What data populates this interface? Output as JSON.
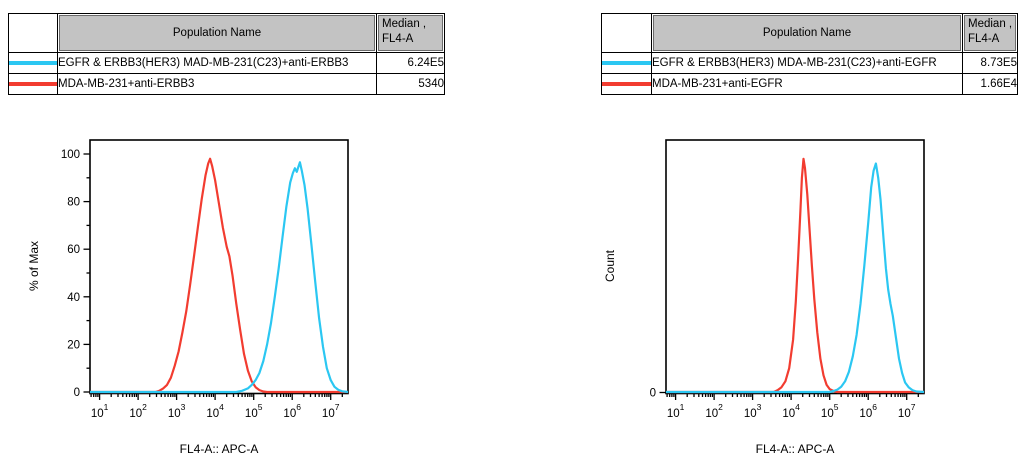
{
  "colors": {
    "series_cyan": "#2BC7F2",
    "series_red": "#F23C30",
    "header_bg": "#C3C3C3",
    "table_border": "#000000",
    "text": "#000000",
    "background": "#FFFFFF"
  },
  "tables": [
    {
      "population_header": "Population Name",
      "median_header_line1": "Median ,",
      "median_header_line2": "FL4-A",
      "rows": [
        {
          "swatch_color": "#2BC7F2",
          "population": "EGFR & ERBB3(HER3) MAD-MB-231(C23)+anti-ERBB3",
          "median": "6.24E5"
        },
        {
          "swatch_color": "#F23C30",
          "population": "MDA-MB-231+anti-ERBB3",
          "median": "5340"
        }
      ]
    },
    {
      "population_header": "Population Name",
      "median_header_line1": "Median ,",
      "median_header_line2": "FL4-A",
      "rows": [
        {
          "swatch_color": "#2BC7F2",
          "population": "EGFR & ERBB3(HER3) MDA-MB-231(C23)+anti-EGFR",
          "median": "8.73E5"
        },
        {
          "swatch_color": "#F23C30",
          "population": "MDA-MB-231+anti-EGFR",
          "median": "1.66E4"
        }
      ]
    }
  ],
  "chart_data": [
    {
      "type": "line",
      "subtype": "flow-cytometry-histogram-overlay",
      "xlabel": "FL4-A:: APC-A",
      "ylabel": "% of Max",
      "x_scale": "log10",
      "x_range_log10": [
        0.75,
        7.45
      ],
      "x_tick_exponents": [
        1,
        2,
        3,
        4,
        5,
        6,
        7
      ],
      "y_axis": {
        "style": "percent",
        "ticks": [
          0,
          20,
          40,
          60,
          80,
          100
        ],
        "minor_step": 10,
        "range": [
          0,
          100
        ]
      },
      "grid": false,
      "legend": "none",
      "series": [
        {
          "name": "MDA-MB-231+anti-ERBB3",
          "color_key": "red",
          "median": "5340",
          "points": [
            [
              0.75,
              0
            ],
            [
              2.45,
              0
            ],
            [
              2.55,
              0.5
            ],
            [
              2.65,
              1.5
            ],
            [
              2.75,
              3
            ],
            [
              2.85,
              6
            ],
            [
              2.95,
              11
            ],
            [
              3.05,
              17
            ],
            [
              3.15,
              25
            ],
            [
              3.25,
              34
            ],
            [
              3.35,
              45
            ],
            [
              3.45,
              57
            ],
            [
              3.55,
              69
            ],
            [
              3.65,
              81
            ],
            [
              3.75,
              91
            ],
            [
              3.82,
              96
            ],
            [
              3.87,
              98
            ],
            [
              3.92,
              95
            ],
            [
              4.0,
              89
            ],
            [
              4.1,
              79
            ],
            [
              4.2,
              69
            ],
            [
              4.3,
              61
            ],
            [
              4.37,
              57
            ],
            [
              4.45,
              49
            ],
            [
              4.55,
              37
            ],
            [
              4.65,
              26
            ],
            [
              4.75,
              16
            ],
            [
              4.85,
              9
            ],
            [
              4.95,
              4.5
            ],
            [
              5.05,
              2
            ],
            [
              5.15,
              0.8
            ],
            [
              5.25,
              0.2
            ],
            [
              5.35,
              0
            ],
            [
              7.45,
              0
            ]
          ]
        },
        {
          "name": "EGFR & ERBB3(HER3) MAD-MB-231(C23)+anti-ERBB3",
          "color_key": "cyan",
          "median": "6.24E5",
          "points": [
            [
              0.75,
              0
            ],
            [
              4.55,
              0
            ],
            [
              4.7,
              0.5
            ],
            [
              4.85,
              1.5
            ],
            [
              4.95,
              3
            ],
            [
              5.05,
              5
            ],
            [
              5.15,
              8
            ],
            [
              5.25,
              13
            ],
            [
              5.35,
              20
            ],
            [
              5.45,
              29
            ],
            [
              5.55,
              40
            ],
            [
              5.65,
              52
            ],
            [
              5.75,
              65
            ],
            [
              5.85,
              78
            ],
            [
              5.95,
              88
            ],
            [
              6.02,
              92
            ],
            [
              6.07,
              94
            ],
            [
              6.12,
              92.5
            ],
            [
              6.16,
              94.5
            ],
            [
              6.2,
              96.5
            ],
            [
              6.25,
              93
            ],
            [
              6.32,
              87
            ],
            [
              6.4,
              77
            ],
            [
              6.5,
              62
            ],
            [
              6.6,
              46
            ],
            [
              6.7,
              31
            ],
            [
              6.8,
              19
            ],
            [
              6.9,
              10
            ],
            [
              7.0,
              5
            ],
            [
              7.1,
              2.2
            ],
            [
              7.2,
              0.9
            ],
            [
              7.3,
              0.3
            ],
            [
              7.45,
              0
            ]
          ]
        }
      ]
    },
    {
      "type": "line",
      "subtype": "flow-cytometry-histogram-overlay",
      "xlabel": "FL4-A:: APC-A",
      "ylabel": "Count",
      "x_scale": "log10",
      "x_range_log10": [
        0.75,
        7.45
      ],
      "x_tick_exponents": [
        1,
        2,
        3,
        4,
        5,
        6,
        7
      ],
      "y_axis": {
        "style": "zero-only",
        "ticks": [
          0
        ],
        "range": [
          0,
          100
        ]
      },
      "grid": false,
      "legend": "none",
      "series": [
        {
          "name": "MDA-MB-231+anti-EGFR",
          "color_key": "red",
          "median": "1.66E4",
          "points": [
            [
              0.75,
              0
            ],
            [
              3.55,
              0
            ],
            [
              3.65,
              0.8
            ],
            [
              3.75,
              2
            ],
            [
              3.85,
              4.5
            ],
            [
              3.95,
              10
            ],
            [
              4.05,
              22
            ],
            [
              4.12,
              38
            ],
            [
              4.18,
              56
            ],
            [
              4.24,
              76
            ],
            [
              4.28,
              90
            ],
            [
              4.32,
              98
            ],
            [
              4.36,
              94
            ],
            [
              4.42,
              83
            ],
            [
              4.48,
              68
            ],
            [
              4.54,
              53
            ],
            [
              4.6,
              39
            ],
            [
              4.68,
              25
            ],
            [
              4.76,
              14
            ],
            [
              4.84,
              7
            ],
            [
              4.92,
              3
            ],
            [
              5.0,
              1.2
            ],
            [
              5.1,
              0.4
            ],
            [
              5.2,
              0
            ],
            [
              7.45,
              0
            ]
          ]
        },
        {
          "name": "EGFR & ERBB3(HER3) MDA-MB-231(C23)+anti-EGFR",
          "color_key": "cyan",
          "median": "8.73E5",
          "points": [
            [
              0.75,
              0
            ],
            [
              5.0,
              0
            ],
            [
              5.1,
              0.4
            ],
            [
              5.2,
              1
            ],
            [
              5.3,
              2.2
            ],
            [
              5.4,
              4.5
            ],
            [
              5.5,
              8.5
            ],
            [
              5.6,
              15
            ],
            [
              5.7,
              24
            ],
            [
              5.8,
              37
            ],
            [
              5.9,
              53
            ],
            [
              6.0,
              71
            ],
            [
              6.08,
              86
            ],
            [
              6.14,
              93
            ],
            [
              6.2,
              96
            ],
            [
              6.26,
              90
            ],
            [
              6.32,
              81
            ],
            [
              6.4,
              64
            ],
            [
              6.46,
              52
            ],
            [
              6.52,
              43
            ],
            [
              6.58,
              37
            ],
            [
              6.64,
              32
            ],
            [
              6.72,
              23
            ],
            [
              6.8,
              14
            ],
            [
              6.88,
              8
            ],
            [
              6.96,
              4
            ],
            [
              7.05,
              2
            ],
            [
              7.15,
              0.8
            ],
            [
              7.25,
              0.2
            ],
            [
              7.45,
              0
            ]
          ]
        }
      ]
    }
  ]
}
